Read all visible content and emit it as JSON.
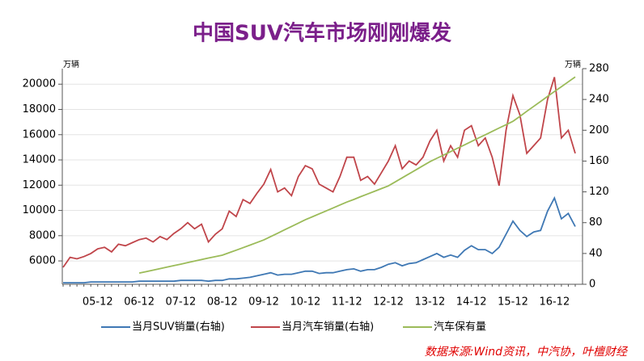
{
  "chart_data": {
    "type": "line",
    "title": "中国SUV汽车市场刚刚爆发",
    "y_unit": "万辆",
    "y2_unit": "万辆",
    "source": "数据来源:Wind资讯，中汽协，叶檀财经",
    "categories": [
      null,
      null,
      null,
      null,
      null,
      "05-12",
      null,
      null,
      null,
      null,
      null,
      "06-12",
      null,
      null,
      null,
      null,
      null,
      "07-12",
      null,
      null,
      null,
      null,
      null,
      "08-12",
      null,
      null,
      null,
      null,
      null,
      "09-12",
      null,
      null,
      null,
      null,
      null,
      "10-12",
      null,
      null,
      null,
      null,
      null,
      "11-12",
      null,
      null,
      null,
      null,
      null,
      "12-12",
      null,
      null,
      null,
      null,
      null,
      "13-12",
      null,
      null,
      null,
      null,
      null,
      "14-12",
      null,
      null,
      null,
      null,
      null,
      "15-12",
      null,
      null,
      null,
      null,
      null,
      "16-12",
      null,
      null,
      null
    ],
    "ylim": [
      4150,
      21230
    ],
    "yticks": [
      6000,
      8000,
      10000,
      12000,
      14000,
      16000,
      18000,
      20000
    ],
    "y2lim": [
      0,
      280
    ],
    "y2ticks": [
      0,
      40,
      80,
      120,
      160,
      200,
      240,
      280
    ],
    "grid": true,
    "series": [
      {
        "name": "当月SUV销量(右轴)",
        "color": "#3f78b4",
        "axis": "y2",
        "values": [
          2,
          2,
          2,
          2,
          3,
          3,
          3,
          3,
          3,
          3,
          3,
          4,
          4,
          4,
          4,
          4,
          4,
          5,
          5,
          5,
          5,
          4,
          5,
          5,
          7,
          7,
          8,
          9,
          11,
          13,
          15,
          12,
          13,
          13,
          15,
          17,
          17,
          14,
          15,
          15,
          17,
          19,
          20,
          17,
          19,
          19,
          22,
          26,
          28,
          24,
          27,
          28,
          32,
          36,
          40,
          35,
          38,
          35,
          44,
          50,
          45,
          45,
          40,
          48,
          65,
          82,
          70,
          62,
          68,
          70,
          95,
          112,
          85,
          92,
          75
        ]
      },
      {
        "name": "当月汽车销量(右轴)",
        "color": "#c0454a",
        "axis": "y2",
        "values": [
          22,
          35,
          33,
          36,
          40,
          46,
          48,
          42,
          52,
          50,
          54,
          58,
          60,
          55,
          62,
          58,
          66,
          72,
          80,
          72,
          78,
          55,
          65,
          72,
          95,
          88,
          110,
          105,
          118,
          130,
          149,
          120,
          125,
          115,
          140,
          154,
          150,
          130,
          125,
          120,
          140,
          165,
          165,
          135,
          140,
          130,
          145,
          160,
          180,
          150,
          160,
          155,
          165,
          186,
          200,
          160,
          180,
          165,
          200,
          206,
          180,
          190,
          165,
          128,
          200,
          245,
          220,
          170,
          180,
          190,
          240,
          269,
          190,
          200,
          170
        ]
      },
      {
        "name": "汽车保有量",
        "color": "#9bbb59",
        "values": [
          null,
          null,
          null,
          null,
          null,
          null,
          null,
          null,
          null,
          null,
          null,
          5040,
          5150,
          5270,
          5390,
          5510,
          5630,
          5745,
          5870,
          5990,
          6110,
          6230,
          6340,
          6450,
          6650,
          6850,
          7050,
          7250,
          7460,
          7660,
          7930,
          8190,
          8460,
          8730,
          8990,
          9260,
          9490,
          9730,
          9960,
          10190,
          10430,
          10660,
          10870,
          11090,
          11300,
          11510,
          11730,
          11940,
          12260,
          12580,
          12900,
          13220,
          13540,
          13860,
          14130,
          14390,
          14660,
          14930,
          15190,
          15460,
          15730,
          15990,
          16260,
          16530,
          16790,
          17060,
          17450,
          17850,
          18240,
          18630,
          19030,
          19420,
          19800,
          20190,
          20570
        ]
      }
    ]
  }
}
